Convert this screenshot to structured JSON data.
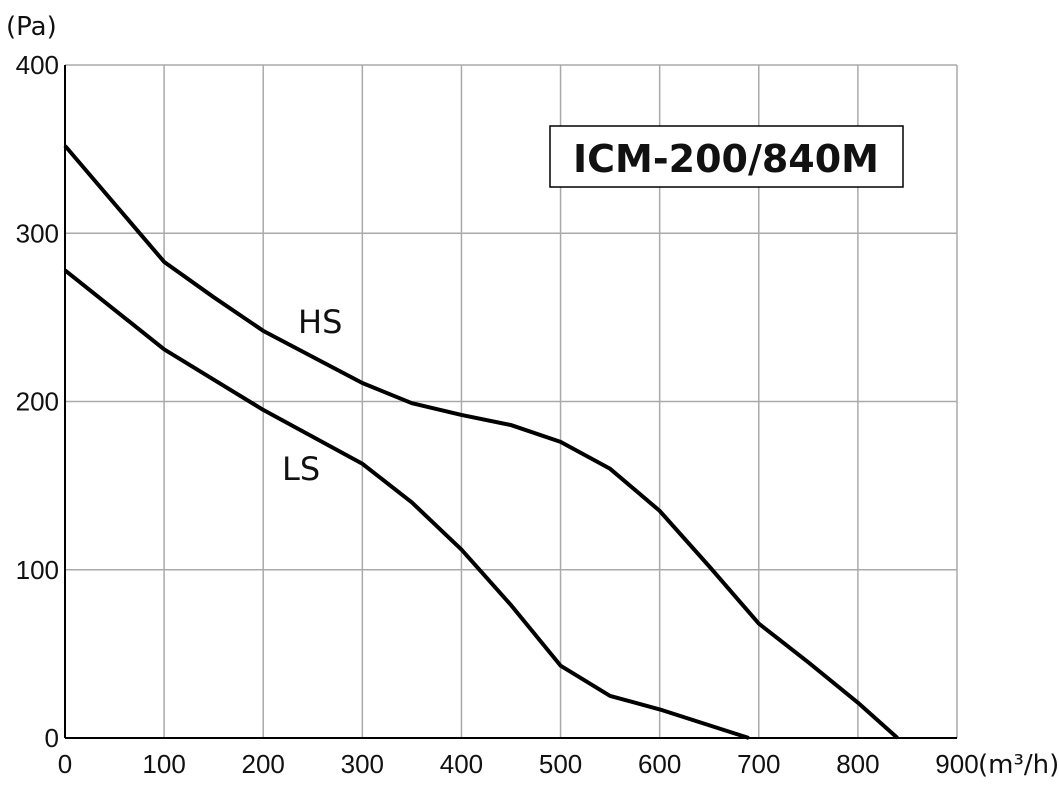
{
  "chart_data": {
    "type": "line",
    "title": "ICM-200/840M",
    "y_label": "(Pa)",
    "x_label": "(m³/h)",
    "xlim": [
      0,
      900
    ],
    "ylim": [
      0,
      400
    ],
    "xticks": [
      0,
      100,
      200,
      300,
      400,
      500,
      600,
      700,
      800,
      900
    ],
    "yticks": [
      0,
      100,
      200,
      300,
      400
    ],
    "grid": true,
    "series": [
      {
        "name": "HS",
        "color": "#000000",
        "x": [
          0,
          100,
          150,
          200,
          300,
          350,
          400,
          450,
          500,
          550,
          600,
          650,
          700,
          750,
          800,
          840
        ],
        "values": [
          352,
          283,
          262,
          242,
          211,
          199,
          192,
          186,
          176,
          160,
          135,
          102,
          68,
          45,
          21,
          0
        ]
      },
      {
        "name": "LS",
        "color": "#000000",
        "x": [
          0,
          100,
          200,
          300,
          350,
          400,
          450,
          500,
          550,
          600,
          690
        ],
        "values": [
          278,
          231,
          195,
          163,
          140,
          112,
          79,
          43,
          25,
          17,
          0
        ]
      }
    ]
  }
}
